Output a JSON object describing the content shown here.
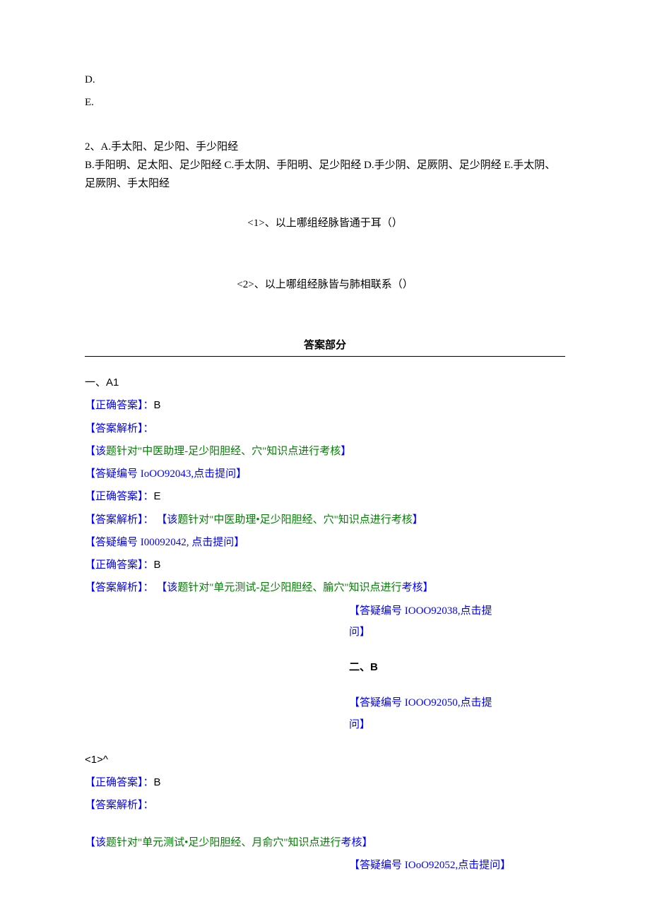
{
  "header": {
    "optD": "D.",
    "optE": "E."
  },
  "q2": {
    "stem_prefix": "2、A.",
    "optA": "手太阳、足少阳、手少阳经",
    "optB": "B.手阳明、足太阳、足少阳经",
    "optC": "C.手太阴、手阳明、足少阳经",
    "optD": "D.手少阴、足厥阴、足少阴经",
    "optE": "E.手太阴、足厥阴、手太阳经",
    "sub1": "<1>、以上哪组经脉皆通于耳（）",
    "sub2": "<2>、以上哪组经脉皆与肺相联系（）"
  },
  "answers": {
    "title": "答案部分",
    "sectionA1": "一、A1",
    "correct_label": "【正确答案】：",
    "ansB": "B",
    "ansE": "E",
    "analysis_label": "【答案解析】：",
    "note1_pre": "【该",
    "note1_mid": "题针对\"中医助理-足少阳胆经、穴\"知识点进行考核",
    "note1_suf": "】",
    "ref1": "【答疑编号 IoOO92043,点击提问】",
    "note2_pre": "【该",
    "note2_mid": "题针对\"中医助理•足少阳胆经、穴\"知识点进行考核",
    "note2_suf": "】",
    "ref2": "【答疑编号 I00092042, 点击提问】",
    "note3_pre": "【该",
    "note3_mid": "题针对\"单元测试-足少阳胆经、腧穴\"知识点进行",
    "note3_suf": "考核】",
    "ref3_a": "【答疑编号 IOOO92038,点击提",
    "ref3_b": "问】",
    "sectionB": "二、B",
    "ref4_a": "【答疑编号 IOOO92050,点击提",
    "ref4_b": "问】",
    "sub1_marker": "<1>^",
    "note4_pre": "【该",
    "note4_mid": "题针对\"单元测试•足少阳胆经、月俞穴\"知识点进行",
    "note4_suf": "考核】",
    "ref5": "【答疑编号 IOoO92052,点击提问】"
  }
}
